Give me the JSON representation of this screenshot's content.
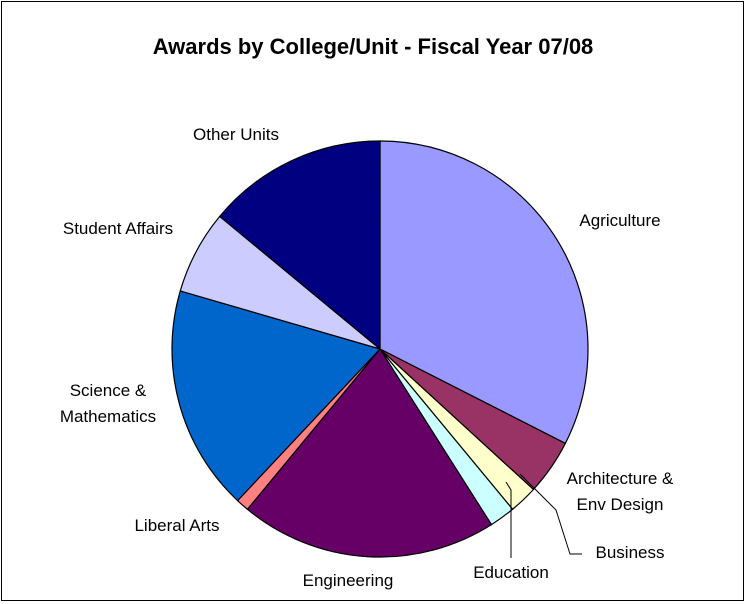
{
  "chart_data": {
    "type": "pie",
    "title": "Awards by College/Unit - Fiscal Year 07/08",
    "slices": [
      {
        "label": "Agriculture",
        "label_lines": [
          "Agriculture"
        ],
        "value": 32.5,
        "color": "#9999FF"
      },
      {
        "label": "Architecture & Env Design",
        "label_lines": [
          "Architecture &",
          "Env Design"
        ],
        "value": 4.3,
        "color": "#993366"
      },
      {
        "label": "Business",
        "label_lines": [
          "Business"
        ],
        "value": 2.2,
        "color": "#FFFFCC"
      },
      {
        "label": "Education",
        "label_lines": [
          "Education"
        ],
        "value": 2.0,
        "color": "#CCFFFF"
      },
      {
        "label": "Engineering",
        "label_lines": [
          "Engineering"
        ],
        "value": 20.0,
        "color": "#660066"
      },
      {
        "label": "Liberal Arts",
        "label_lines": [
          "Liberal Arts"
        ],
        "value": 1.0,
        "color": "#FF8080"
      },
      {
        "label": "Science & Mathematics",
        "label_lines": [
          "Science &",
          "Mathematics"
        ],
        "value": 17.5,
        "color": "#0066CC"
      },
      {
        "label": "Student Affairs",
        "label_lines": [
          "Student Affairs"
        ],
        "value": 6.5,
        "color": "#CCCCFF"
      },
      {
        "label": "Other Units",
        "label_lines": [
          "Other Units"
        ],
        "value": 14.0,
        "color": "#000080"
      }
    ],
    "start_angle_deg": 0,
    "direction": "clockwise",
    "legend": "none",
    "slice_border_color": "#000000"
  }
}
